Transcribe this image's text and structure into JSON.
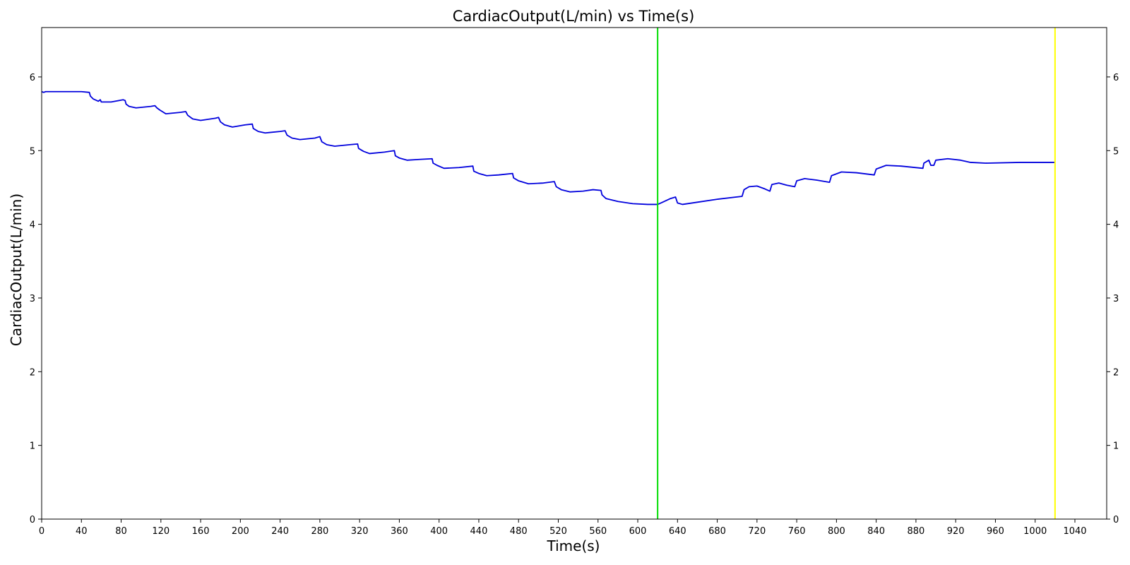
{
  "chart_data": {
    "type": "line",
    "title": "CardiacOutput(L/min) vs Time(s)",
    "xlabel": "Time(s)",
    "ylabel": "CardiacOutput(L/min)",
    "xlim": [
      0,
      1072
    ],
    "ylim": [
      0,
      6.67
    ],
    "x_ticks": [
      0,
      40,
      80,
      120,
      160,
      200,
      240,
      280,
      320,
      360,
      400,
      440,
      480,
      520,
      560,
      600,
      640,
      680,
      720,
      760,
      800,
      840,
      880,
      920,
      960,
      1000,
      1040
    ],
    "y_ticks": [
      0,
      1,
      2,
      3,
      4,
      5,
      6
    ],
    "y_ticks_right": true,
    "grid": false,
    "legend": "none",
    "colors": {
      "line": "#0000dd",
      "marker_1": "#00dd00",
      "marker_2": "#ffff00"
    },
    "vertical_lines": [
      {
        "x": 620,
        "color": "#00dd00"
      },
      {
        "x": 1020,
        "color": "#ffff00"
      }
    ],
    "series": [
      {
        "points": [
          [
            0,
            5.8
          ],
          [
            2,
            5.79
          ],
          [
            4,
            5.8
          ],
          [
            40,
            5.8
          ],
          [
            48,
            5.79
          ],
          [
            49,
            5.74
          ],
          [
            52,
            5.7
          ],
          [
            57,
            5.67
          ],
          [
            59,
            5.69
          ],
          [
            60,
            5.66
          ],
          [
            70,
            5.66
          ],
          [
            82,
            5.69
          ],
          [
            84,
            5.68
          ],
          [
            85,
            5.63
          ],
          [
            88,
            5.6
          ],
          [
            95,
            5.58
          ],
          [
            110,
            5.6
          ],
          [
            114,
            5.61
          ],
          [
            116,
            5.58
          ],
          [
            119,
            5.55
          ],
          [
            125,
            5.5
          ],
          [
            140,
            5.52
          ],
          [
            145,
            5.53
          ],
          [
            147,
            5.48
          ],
          [
            152,
            5.43
          ],
          [
            160,
            5.41
          ],
          [
            175,
            5.44
          ],
          [
            178,
            5.45
          ],
          [
            180,
            5.39
          ],
          [
            184,
            5.35
          ],
          [
            192,
            5.32
          ],
          [
            205,
            5.35
          ],
          [
            212,
            5.36
          ],
          [
            213,
            5.3
          ],
          [
            218,
            5.26
          ],
          [
            225,
            5.24
          ],
          [
            240,
            5.26
          ],
          [
            245,
            5.27
          ],
          [
            247,
            5.21
          ],
          [
            252,
            5.17
          ],
          [
            260,
            5.15
          ],
          [
            275,
            5.17
          ],
          [
            280,
            5.19
          ],
          [
            282,
            5.12
          ],
          [
            287,
            5.08
          ],
          [
            295,
            5.06
          ],
          [
            310,
            5.08
          ],
          [
            318,
            5.09
          ],
          [
            319,
            5.03
          ],
          [
            324,
            4.99
          ],
          [
            330,
            4.96
          ],
          [
            345,
            4.98
          ],
          [
            355,
            5.0
          ],
          [
            356,
            4.93
          ],
          [
            360,
            4.9
          ],
          [
            368,
            4.87
          ],
          [
            380,
            4.88
          ],
          [
            393,
            4.89
          ],
          [
            394,
            4.83
          ],
          [
            398,
            4.8
          ],
          [
            405,
            4.76
          ],
          [
            420,
            4.77
          ],
          [
            434,
            4.79
          ],
          [
            435,
            4.72
          ],
          [
            440,
            4.69
          ],
          [
            448,
            4.66
          ],
          [
            460,
            4.67
          ],
          [
            474,
            4.69
          ],
          [
            475,
            4.63
          ],
          [
            480,
            4.59
          ],
          [
            490,
            4.55
          ],
          [
            505,
            4.56
          ],
          [
            516,
            4.58
          ],
          [
            518,
            4.51
          ],
          [
            523,
            4.47
          ],
          [
            532,
            4.44
          ],
          [
            545,
            4.45
          ],
          [
            555,
            4.47
          ],
          [
            563,
            4.46
          ],
          [
            564,
            4.4
          ],
          [
            568,
            4.35
          ],
          [
            580,
            4.31
          ],
          [
            595,
            4.28
          ],
          [
            610,
            4.27
          ],
          [
            620,
            4.27
          ],
          [
            625,
            4.3
          ],
          [
            633,
            4.35
          ],
          [
            638,
            4.37
          ],
          [
            640,
            4.29
          ],
          [
            645,
            4.27
          ],
          [
            660,
            4.3
          ],
          [
            680,
            4.34
          ],
          [
            705,
            4.38
          ],
          [
            707,
            4.47
          ],
          [
            712,
            4.51
          ],
          [
            720,
            4.52
          ],
          [
            728,
            4.48
          ],
          [
            733,
            4.45
          ],
          [
            735,
            4.54
          ],
          [
            742,
            4.56
          ],
          [
            750,
            4.53
          ],
          [
            758,
            4.51
          ],
          [
            760,
            4.59
          ],
          [
            768,
            4.62
          ],
          [
            780,
            4.6
          ],
          [
            793,
            4.57
          ],
          [
            795,
            4.66
          ],
          [
            805,
            4.71
          ],
          [
            820,
            4.7
          ],
          [
            838,
            4.67
          ],
          [
            840,
            4.75
          ],
          [
            850,
            4.8
          ],
          [
            865,
            4.79
          ],
          [
            887,
            4.76
          ],
          [
            888,
            4.83
          ],
          [
            893,
            4.87
          ],
          [
            895,
            4.8
          ],
          [
            898,
            4.8
          ],
          [
            900,
            4.87
          ],
          [
            912,
            4.89
          ],
          [
            925,
            4.87
          ],
          [
            935,
            4.84
          ],
          [
            950,
            4.83
          ],
          [
            985,
            4.84
          ],
          [
            1020,
            4.84
          ]
        ]
      }
    ]
  }
}
